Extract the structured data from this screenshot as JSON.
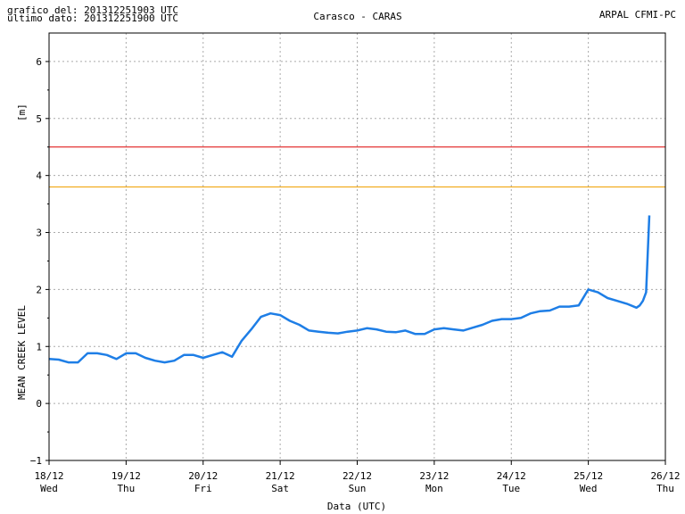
{
  "header": {
    "grafico_del": "grafico del: 201312251903 UTC",
    "ultimo_dato": "ultimo dato: 201312251900 UTC",
    "station": "Carasco - CARAS",
    "source": "ARPAL CFMI-PC"
  },
  "chart_data": {
    "type": "line",
    "title": "Carasco - CARAS",
    "xlabel": "Data (UTC)",
    "ylabel": "MEAN CREEK LEVEL",
    "yunit": "[m]",
    "xlim": [
      "2013-12-18 00:00",
      "2013-12-26 00:00"
    ],
    "ylim": [
      -1,
      6.5
    ],
    "yticks": [
      -1,
      0,
      1,
      2,
      3,
      4,
      5,
      6
    ],
    "xtick_dates": [
      "18/12",
      "19/12",
      "20/12",
      "21/12",
      "22/12",
      "23/12",
      "24/12",
      "25/12",
      "26/12"
    ],
    "xtick_days": [
      "Wed",
      "Thu",
      "Fri",
      "Sat",
      "Sun",
      "Mon",
      "Tue",
      "Wed",
      "Thu"
    ],
    "grid": true,
    "thresholds": [
      {
        "value": 4.5,
        "color": "#dd0000"
      },
      {
        "value": 3.8,
        "color": "#f0a000"
      }
    ],
    "series": [
      {
        "color": "#1e7ee6",
        "x": [
          "2013-12-18 00:00",
          "2013-12-18 03:00",
          "2013-12-18 06:00",
          "2013-12-18 09:00",
          "2013-12-18 12:00",
          "2013-12-18 15:00",
          "2013-12-18 18:00",
          "2013-12-18 21:00",
          "2013-12-19 00:00",
          "2013-12-19 03:00",
          "2013-12-19 06:00",
          "2013-12-19 09:00",
          "2013-12-19 12:00",
          "2013-12-19 15:00",
          "2013-12-19 18:00",
          "2013-12-19 21:00",
          "2013-12-20 00:00",
          "2013-12-20 03:00",
          "2013-12-20 06:00",
          "2013-12-20 09:00",
          "2013-12-20 12:00",
          "2013-12-20 15:00",
          "2013-12-20 18:00",
          "2013-12-20 21:00",
          "2013-12-21 00:00",
          "2013-12-21 03:00",
          "2013-12-21 06:00",
          "2013-12-21 09:00",
          "2013-12-21 12:00",
          "2013-12-21 15:00",
          "2013-12-21 18:00",
          "2013-12-21 21:00",
          "2013-12-22 00:00",
          "2013-12-22 03:00",
          "2013-12-22 06:00",
          "2013-12-22 09:00",
          "2013-12-22 12:00",
          "2013-12-22 15:00",
          "2013-12-22 18:00",
          "2013-12-22 21:00",
          "2013-12-23 00:00",
          "2013-12-23 03:00",
          "2013-12-23 06:00",
          "2013-12-23 09:00",
          "2013-12-23 12:00",
          "2013-12-23 15:00",
          "2013-12-23 18:00",
          "2013-12-23 21:00",
          "2013-12-24 00:00",
          "2013-12-24 03:00",
          "2013-12-24 06:00",
          "2013-12-24 09:00",
          "2013-12-24 12:00",
          "2013-12-24 15:00",
          "2013-12-24 18:00",
          "2013-12-24 21:00",
          "2013-12-25 00:00",
          "2013-12-25 03:00",
          "2013-12-25 06:00",
          "2013-12-25 09:00",
          "2013-12-25 12:00",
          "2013-12-25 15:00",
          "2013-12-25 16:00",
          "2013-12-25 17:00",
          "2013-12-25 18:00",
          "2013-12-25 19:00"
        ],
        "y": [
          0.78,
          0.77,
          0.72,
          0.72,
          0.88,
          0.88,
          0.85,
          0.78,
          0.88,
          0.88,
          0.8,
          0.75,
          0.72,
          0.75,
          0.85,
          0.85,
          0.8,
          0.85,
          0.9,
          0.82,
          1.1,
          1.3,
          1.52,
          1.58,
          1.55,
          1.45,
          1.38,
          1.28,
          1.26,
          1.24,
          1.23,
          1.26,
          1.28,
          1.32,
          1.3,
          1.26,
          1.25,
          1.28,
          1.22,
          1.22,
          1.3,
          1.32,
          1.3,
          1.28,
          1.33,
          1.38,
          1.45,
          1.48,
          1.48,
          1.5,
          1.58,
          1.62,
          1.63,
          1.7,
          1.7,
          1.72,
          2.0,
          1.95,
          1.85,
          1.8,
          1.75,
          1.68,
          1.72,
          1.8,
          1.95,
          3.3
        ]
      }
    ]
  }
}
